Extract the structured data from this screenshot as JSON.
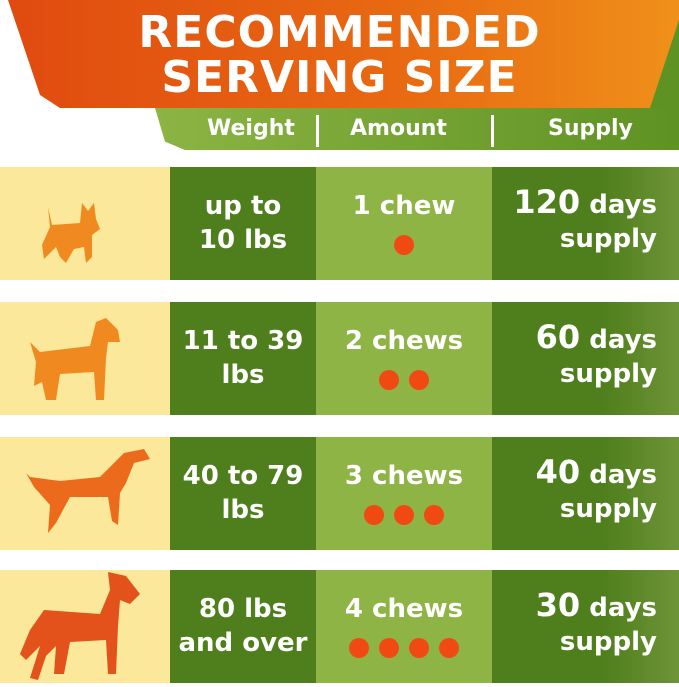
{
  "title": {
    "line1": "RECOMMENDED",
    "line2": "SERVING SIZE"
  },
  "headers": {
    "weight": "Weight",
    "amount": "Amount",
    "supply": "Supply"
  },
  "colors": {
    "orange": "#e04a10",
    "dark_green": "#4f7f1c",
    "light_green": "#8fb446",
    "cream": "#fbe89a",
    "dot": "#f04a12"
  },
  "rows": [
    {
      "dog": "small-terrier-icon",
      "weight_1": "up to",
      "weight_2": "10 lbs",
      "amount": "1 chew",
      "chews": 1,
      "days": "120",
      "days_unit": "days",
      "supply": "supply"
    },
    {
      "dog": "schnauzer-icon",
      "weight_1": "11 to 39",
      "weight_2": "lbs",
      "amount": "2 chews",
      "chews": 2,
      "days": "60",
      "days_unit": "days",
      "supply": "supply"
    },
    {
      "dog": "pointer-icon",
      "weight_1": "40 to 79",
      "weight_2": "lbs",
      "amount": "3 chews",
      "chews": 3,
      "days": "40",
      "days_unit": "days",
      "supply": "supply"
    },
    {
      "dog": "great-dane-icon",
      "weight_1": "80 lbs",
      "weight_2": "and over",
      "amount": "4 chews",
      "chews": 4,
      "days": "30",
      "days_unit": "days",
      "supply": "supply"
    }
  ]
}
